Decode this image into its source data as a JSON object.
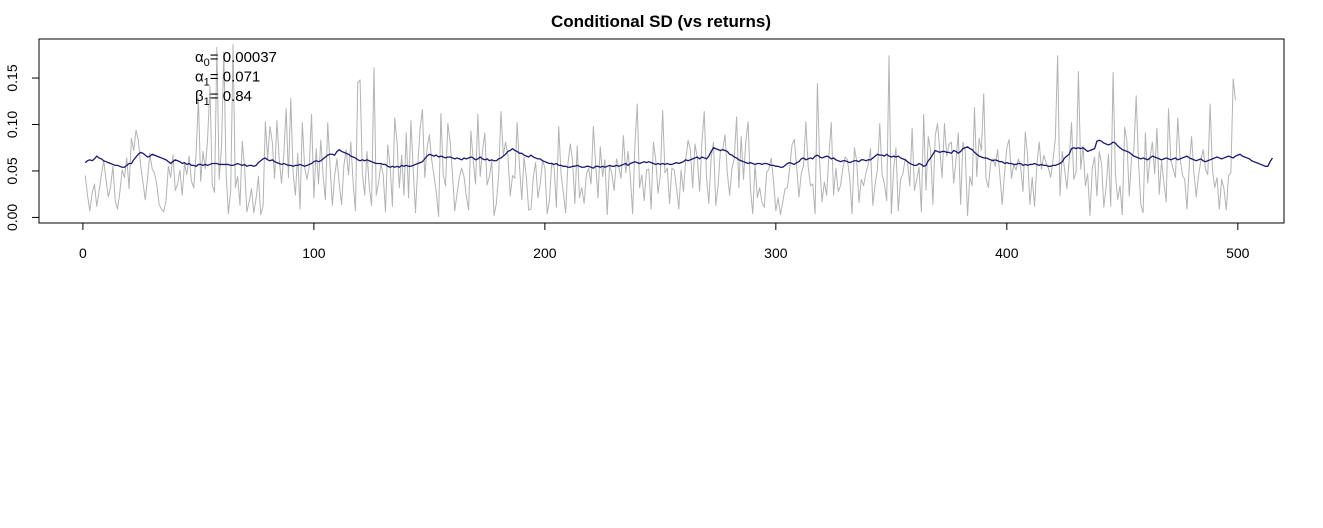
{
  "chart_data": {
    "type": "line",
    "title": "Conditional SD (vs returns)",
    "xlabel": "",
    "ylabel": "",
    "xlim": [
      -19,
      520
    ],
    "ylim": [
      -0.006,
      0.192
    ],
    "x_ticks": [
      0,
      100,
      200,
      300,
      400,
      500
    ],
    "x_tick_labels": [
      "0",
      "100",
      "200",
      "300",
      "400",
      "500"
    ],
    "y_ticks": [
      0.0,
      0.05,
      0.1,
      0.15
    ],
    "y_tick_labels": [
      "0.00",
      "0.05",
      "0.10",
      "0.15"
    ],
    "grid": false,
    "legend": "none",
    "annotations": [
      {
        "symbol": "α",
        "subscript": "0",
        "text": "= 0.00037"
      },
      {
        "symbol": "α",
        "subscript": "1",
        "text": "= 0.071"
      },
      {
        "symbol": "β",
        "subscript": "1",
        "text": "= 0.84"
      }
    ],
    "series": [
      {
        "role": "absolute returns",
        "color": "#b3b3b3",
        "x_start": 1,
        "x_step": 1,
        "values": [
          0.045,
          0.024,
          0.007,
          0.026,
          0.036,
          0.012,
          0.028,
          0.046,
          0.061,
          0.041,
          0.022,
          0.033,
          0.055,
          0.018,
          0.009,
          0.027,
          0.051,
          0.043,
          0.064,
          0.031,
          0.085,
          0.072,
          0.094,
          0.083,
          0.056,
          0.038,
          0.019,
          0.042,
          0.069,
          0.052,
          0.048,
          0.035,
          0.014,
          0.009,
          0.006,
          0.018,
          0.055,
          0.043,
          0.067,
          0.029,
          0.036,
          0.051,
          0.024,
          0.058,
          0.046,
          0.066,
          0.039,
          0.032,
          0.068,
          0.128,
          0.039,
          0.071,
          0.052,
          0.085,
          0.141,
          0.035,
          0.027,
          0.183,
          0.041,
          0.075,
          0.178,
          0.048,
          0.004,
          0.029,
          0.186,
          0.032,
          0.044,
          0.013,
          0.082,
          0.054,
          0.006,
          0.017,
          0.031,
          0.005,
          0.021,
          0.044,
          0.003,
          0.012,
          0.103,
          0.063,
          0.098,
          0.081,
          0.042,
          0.104,
          0.063,
          0.037,
          0.068,
          0.117,
          0.043,
          0.128,
          0.048,
          0.024,
          0.069,
          0.009,
          0.102,
          0.054,
          0.041,
          0.055,
          0.111,
          0.021,
          0.074,
          0.036,
          0.083,
          0.045,
          0.019,
          0.102,
          0.056,
          0.013,
          0.045,
          0.063,
          0.036,
          0.014,
          0.056,
          0.073,
          0.046,
          0.081,
          0.037,
          0.007,
          0.145,
          0.148,
          0.047,
          0.024,
          0.071,
          0.032,
          0.013,
          0.161,
          0.024,
          0.037,
          0.058,
          0.046,
          0.006,
          0.078,
          0.056,
          0.012,
          0.107,
          0.081,
          0.032,
          0.067,
          0.024,
          0.091,
          0.021,
          0.104,
          0.052,
          0.005,
          0.057,
          0.096,
          0.116,
          0.043,
          0.074,
          0.089,
          0.062,
          0.045,
          0.027,
          0.001,
          0.112,
          0.046,
          0.034,
          0.101,
          0.081,
          0.047,
          0.007,
          0.026,
          0.043,
          0.053,
          0.044,
          0.023,
          0.008,
          0.093,
          0.061,
          0.036,
          0.111,
          0.044,
          0.072,
          0.091,
          0.035,
          0.044,
          0.061,
          0.002,
          0.015,
          0.046,
          0.114,
          0.067,
          0.081,
          0.067,
          0.023,
          0.045,
          0.042,
          0.102,
          0.056,
          0.019,
          0.065,
          0.043,
          0.008,
          0.009,
          0.043,
          0.059,
          0.021,
          0.036,
          0.061,
          0.054,
          0.004,
          0.019,
          0.059,
          0.054,
          0.011,
          0.098,
          0.047,
          0.027,
          0.005,
          0.058,
          0.079,
          0.061,
          0.015,
          0.077,
          0.021,
          0.032,
          0.015,
          0.047,
          0.053,
          0.036,
          0.098,
          0.057,
          0.021,
          0.076,
          0.044,
          0.062,
          0.003,
          0.056,
          0.047,
          0.029,
          0.063,
          0.054,
          0.042,
          0.088,
          0.048,
          0.071,
          0.044,
          0.004,
          0.079,
          0.122,
          0.032,
          0.046,
          0.018,
          0.051,
          0.052,
          0.009,
          0.081,
          0.062,
          0.026,
          0.046,
          0.115,
          0.048,
          0.053,
          0.015,
          0.053,
          0.051,
          0.032,
          0.009,
          0.051,
          0.028,
          0.062,
          0.083,
          0.073,
          0.032,
          0.079,
          0.064,
          0.028,
          0.081,
          0.114,
          0.042,
          0.015,
          0.064,
          0.081,
          0.013,
          0.034,
          0.072,
          0.073,
          0.089,
          0.048,
          0.024,
          0.053,
          0.063,
          0.108,
          0.032,
          0.087,
          0.041,
          0.082,
          0.103,
          0.031,
          0.004,
          0.057,
          0.021,
          0.032,
          0.016,
          0.011,
          0.048,
          0.052,
          0.064,
          0.039,
          0.007,
          0.021,
          0.003,
          0.017,
          0.031,
          0.032,
          0.053,
          0.078,
          0.084,
          0.055,
          0.022,
          0.047,
          0.056,
          0.103,
          0.055,
          0.034,
          0.036,
          0.004,
          0.144,
          0.057,
          0.017,
          0.038,
          0.024,
          0.068,
          0.102,
          0.024,
          0.053,
          0.028,
          0.034,
          0.053,
          0.065,
          0.062,
          0.042,
          0.004,
          0.075,
          0.061,
          0.016,
          0.041,
          0.034,
          0.048,
          0.057,
          0.074,
          0.013,
          0.036,
          0.052,
          0.101,
          0.046,
          0.036,
          0.018,
          0.174,
          0.004,
          0.052,
          0.075,
          0.007,
          0.041,
          0.047,
          0.063,
          0.059,
          0.034,
          0.096,
          0.029,
          0.041,
          0.054,
          0.006,
          0.111,
          0.029,
          0.087,
          0.072,
          0.014,
          0.088,
          0.101,
          0.072,
          0.043,
          0.101,
          0.066,
          0.079,
          0.081,
          0.037,
          0.061,
          0.091,
          0.014,
          0.081,
          0.071,
          0.002,
          0.044,
          0.034,
          0.118,
          0.044,
          0.085,
          0.072,
          0.133,
          0.042,
          0.032,
          0.059,
          0.063,
          0.055,
          0.073,
          0.045,
          0.014,
          0.047,
          0.075,
          0.084,
          0.042,
          0.057,
          0.051,
          0.063,
          0.054,
          0.028,
          0.092,
          0.066,
          0.014,
          0.043,
          0.012,
          0.056,
          0.081,
          0.052,
          0.067,
          0.059,
          0.053,
          0.043,
          0.062,
          0.085,
          0.174,
          0.023,
          0.071,
          0.052,
          0.031,
          0.062,
          0.102,
          0.041,
          0.049,
          0.157,
          0.052,
          0.077,
          0.034,
          0.047,
          0.002,
          0.053,
          0.065,
          0.023,
          0.071,
          0.058,
          0.011,
          0.033,
          0.068,
          0.012,
          0.156,
          0.047,
          0.019,
          0.034,
          0.003,
          0.097,
          0.082,
          0.023,
          0.064,
          0.072,
          0.131,
          0.061,
          0.014,
          0.005,
          0.091,
          0.037,
          0.064,
          0.081,
          0.047,
          0.096,
          0.025,
          0.061,
          0.037,
          0.017,
          0.117,
          0.062,
          0.052,
          0.043,
          0.107,
          0.064,
          0.046,
          0.041,
          0.009,
          0.057,
          0.087,
          0.048,
          0.022,
          0.045,
          0.061,
          0.073,
          0.052,
          0.046,
          0.122,
          0.052,
          0.032,
          0.043,
          0.009,
          0.041,
          0.031,
          0.008,
          0.045,
          0.048,
          0.149,
          0.126
        ]
      },
      {
        "role": "conditional SD",
        "color": "#1a1a6e",
        "x_start": 1,
        "x_step": 1,
        "values": [
          0.059,
          0.061,
          0.062,
          0.061,
          0.063,
          0.066,
          0.064,
          0.063,
          0.061,
          0.06,
          0.059,
          0.058,
          0.057,
          0.056,
          0.056,
          0.055,
          0.054,
          0.054,
          0.056,
          0.058,
          0.058,
          0.062,
          0.065,
          0.068,
          0.07,
          0.069,
          0.067,
          0.065,
          0.066,
          0.068,
          0.067,
          0.066,
          0.065,
          0.064,
          0.063,
          0.062,
          0.06,
          0.058,
          0.06,
          0.062,
          0.061,
          0.06,
          0.058,
          0.059,
          0.057,
          0.058,
          0.056,
          0.056,
          0.055,
          0.057,
          0.057,
          0.056,
          0.057,
          0.056,
          0.057,
          0.058,
          0.058,
          0.058,
          0.057,
          0.057,
          0.057,
          0.057,
          0.057,
          0.056,
          0.056,
          0.057,
          0.058,
          0.057,
          0.056,
          0.057,
          0.055,
          0.056,
          0.056,
          0.055,
          0.056,
          0.059,
          0.061,
          0.063,
          0.064,
          0.062,
          0.061,
          0.062,
          0.06,
          0.059,
          0.058,
          0.057,
          0.058,
          0.057,
          0.056,
          0.056,
          0.055,
          0.056,
          0.056,
          0.057,
          0.056,
          0.055,
          0.056,
          0.057,
          0.058,
          0.06,
          0.061,
          0.06,
          0.061,
          0.063,
          0.065,
          0.067,
          0.068,
          0.068,
          0.067,
          0.071,
          0.073,
          0.071,
          0.07,
          0.069,
          0.068,
          0.066,
          0.065,
          0.064,
          0.062,
          0.061,
          0.062,
          0.061,
          0.062,
          0.061,
          0.06,
          0.059,
          0.058,
          0.058,
          0.058,
          0.057,
          0.057,
          0.055,
          0.054,
          0.055,
          0.054,
          0.055,
          0.054,
          0.056,
          0.055,
          0.056,
          0.055,
          0.055,
          0.056,
          0.057,
          0.058,
          0.059,
          0.06,
          0.063,
          0.066,
          0.068,
          0.067,
          0.066,
          0.067,
          0.065,
          0.066,
          0.065,
          0.064,
          0.065,
          0.065,
          0.064,
          0.063,
          0.064,
          0.063,
          0.062,
          0.064,
          0.063,
          0.064,
          0.065,
          0.064,
          0.062,
          0.063,
          0.065,
          0.063,
          0.062,
          0.063,
          0.061,
          0.062,
          0.061,
          0.061,
          0.063,
          0.064,
          0.066,
          0.068,
          0.071,
          0.072,
          0.074,
          0.072,
          0.071,
          0.069,
          0.069,
          0.067,
          0.066,
          0.065,
          0.067,
          0.065,
          0.064,
          0.063,
          0.063,
          0.061,
          0.06,
          0.059,
          0.058,
          0.058,
          0.057,
          0.058,
          0.056,
          0.056,
          0.055,
          0.055,
          0.054,
          0.054,
          0.055,
          0.055,
          0.056,
          0.055,
          0.054,
          0.054,
          0.055,
          0.055,
          0.054,
          0.053,
          0.055,
          0.055,
          0.054,
          0.055,
          0.054,
          0.055,
          0.056,
          0.055,
          0.055,
          0.056,
          0.055,
          0.056,
          0.057,
          0.058,
          0.056,
          0.058,
          0.059,
          0.06,
          0.059,
          0.058,
          0.059,
          0.06,
          0.059,
          0.06,
          0.059,
          0.058,
          0.057,
          0.058,
          0.057,
          0.058,
          0.057,
          0.058,
          0.057,
          0.057,
          0.058,
          0.059,
          0.058,
          0.059,
          0.06,
          0.062,
          0.061,
          0.062,
          0.063,
          0.064,
          0.065,
          0.063,
          0.065,
          0.064,
          0.063,
          0.066,
          0.071,
          0.075,
          0.074,
          0.073,
          0.072,
          0.073,
          0.072,
          0.071,
          0.068,
          0.067,
          0.065,
          0.064,
          0.062,
          0.061,
          0.06,
          0.059,
          0.058,
          0.059,
          0.058,
          0.057,
          0.058,
          0.058,
          0.057,
          0.058,
          0.058,
          0.057,
          0.056,
          0.056,
          0.055,
          0.055,
          0.054,
          0.054,
          0.056,
          0.058,
          0.059,
          0.058,
          0.057,
          0.059,
          0.06,
          0.063,
          0.064,
          0.062,
          0.063,
          0.064,
          0.063,
          0.066,
          0.067,
          0.065,
          0.064,
          0.065,
          0.066,
          0.065,
          0.063,
          0.064,
          0.062,
          0.061,
          0.06,
          0.061,
          0.061,
          0.06,
          0.059,
          0.06,
          0.061,
          0.061,
          0.06,
          0.062,
          0.062,
          0.061,
          0.062,
          0.062,
          0.064,
          0.066,
          0.068,
          0.067,
          0.067,
          0.066,
          0.068,
          0.066,
          0.065,
          0.066,
          0.065,
          0.066,
          0.064,
          0.063,
          0.062,
          0.06,
          0.058,
          0.057,
          0.056,
          0.056,
          0.058,
          0.057,
          0.055,
          0.056,
          0.061,
          0.064,
          0.068,
          0.072,
          0.071,
          0.07,
          0.071,
          0.071,
          0.07,
          0.07,
          0.069,
          0.072,
          0.071,
          0.069,
          0.071,
          0.074,
          0.075,
          0.076,
          0.074,
          0.073,
          0.07,
          0.068,
          0.066,
          0.065,
          0.064,
          0.064,
          0.063,
          0.062,
          0.061,
          0.062,
          0.061,
          0.06,
          0.06,
          0.058,
          0.059,
          0.058,
          0.058,
          0.057,
          0.057,
          0.058,
          0.058,
          0.056,
          0.057,
          0.056,
          0.057,
          0.057,
          0.058,
          0.057,
          0.056,
          0.057,
          0.056,
          0.056,
          0.055,
          0.055,
          0.056,
          0.056,
          0.057,
          0.058,
          0.06,
          0.064,
          0.066,
          0.068,
          0.074,
          0.075,
          0.074,
          0.075,
          0.074,
          0.075,
          0.073,
          0.071,
          0.072,
          0.073,
          0.074,
          0.082,
          0.083,
          0.082,
          0.08,
          0.079,
          0.078,
          0.079,
          0.081,
          0.08,
          0.077,
          0.075,
          0.073,
          0.072,
          0.071,
          0.07,
          0.068,
          0.066,
          0.065,
          0.064,
          0.063,
          0.064,
          0.063,
          0.062,
          0.064,
          0.066,
          0.065,
          0.064,
          0.063,
          0.062,
          0.063,
          0.064,
          0.063,
          0.062,
          0.063,
          0.064,
          0.062,
          0.063,
          0.064,
          0.065,
          0.066,
          0.064,
          0.063,
          0.062,
          0.061,
          0.062,
          0.063,
          0.061,
          0.06,
          0.061,
          0.062,
          0.063,
          0.064,
          0.065,
          0.064,
          0.063,
          0.064,
          0.065,
          0.066,
          0.065,
          0.064,
          0.066,
          0.067,
          0.068,
          0.066,
          0.065,
          0.064,
          0.063,
          0.061,
          0.06,
          0.059,
          0.058,
          0.057,
          0.056,
          0.055,
          0.055,
          0.06,
          0.064
        ]
      }
    ]
  }
}
